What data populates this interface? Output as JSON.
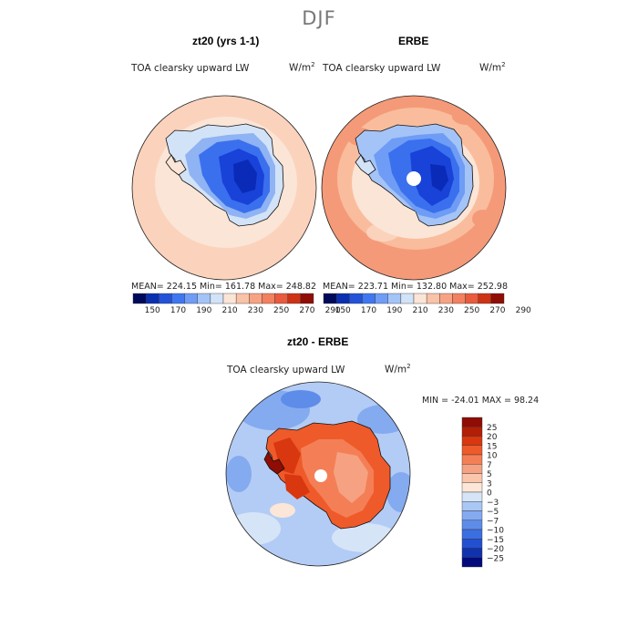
{
  "figure": {
    "title": "DJF"
  },
  "panels": [
    {
      "title": "zt20 (yrs 1-1)",
      "variable": "TOA clearsky upward LW",
      "units_base": "W/m",
      "units_exp": "2",
      "stats": "MEAN= 224.15   Min= 161.78   Max= 248.82"
    },
    {
      "title": "ERBE",
      "variable": "TOA clearsky upward LW",
      "units_base": "W/m",
      "units_exp": "2",
      "stats": "MEAN= 223.71   Min= 132.80   Max= 252.98"
    },
    {
      "title": "zt20 - ERBE",
      "variable": "TOA clearsky upward LW",
      "units_base": "W/m",
      "units_exp": "2",
      "stats": "MIN = -24.01  MAX =  98.24"
    }
  ],
  "colorbars": {
    "absolute": {
      "colors": [
        "#000a5a",
        "#0b2fb0",
        "#2452d8",
        "#3f77f0",
        "#6f9cf5",
        "#a4c4f7",
        "#d2e3f8",
        "#fbe5d6",
        "#f9c3a8",
        "#f7a383",
        "#f3815f",
        "#e95b3c",
        "#cd3214",
        "#8f0d04"
      ],
      "labels": [
        "150",
        "170",
        "190",
        "210",
        "230",
        "250",
        "270",
        "290"
      ]
    },
    "difference": {
      "colors": [
        "#8f0d04",
        "#b21f06",
        "#d8370f",
        "#ef5a2a",
        "#f47f56",
        "#f6a282",
        "#fac6ab",
        "#fbe6d8",
        "#d6e4f7",
        "#aac7f4",
        "#84aaf0",
        "#5e8ce9",
        "#3b6ee0",
        "#2350d0",
        "#1132ae",
        "#020a7c"
      ],
      "labels": [
        "25",
        "20",
        "15",
        "10",
        "7",
        "5",
        "3",
        "0",
        "−3",
        "−5",
        "−7",
        "−10",
        "−15",
        "−20",
        "−25"
      ]
    }
  },
  "map_colors": {
    "background": "#fbd3bd",
    "ocean_warm": "#f59a78",
    "ocean_mid": "#f9bd9e",
    "ice_light": "#d2e3f8",
    "ice_mid": "#8fb3f3",
    "ice_blue": "#3a70ee",
    "ice_deep": "#1842d8",
    "ice_core": "#0a2ab8",
    "diff_ocean": "#b3ccf5",
    "diff_ocean_light": "#d6e4f7",
    "diff_warm": "#ef5a2a",
    "diff_hot": "#d8370f",
    "diff_blue": "#5e8ce9"
  }
}
